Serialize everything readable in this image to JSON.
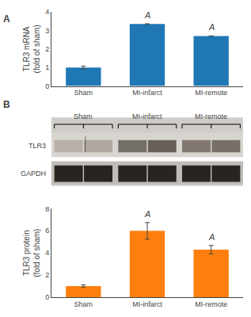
{
  "chart_data": [
    {
      "type": "bar",
      "title": "A",
      "categories": [
        "Sham",
        "MI-infarct",
        "MI-remote"
      ],
      "values": [
        1.0,
        3.35,
        2.7
      ],
      "errors": [
        0.08,
        0.0,
        0.0
      ],
      "annotations": [
        {
          "category": "MI-infarct",
          "text": "A"
        },
        {
          "category": "MI-remote",
          "text": "A"
        }
      ],
      "ylabel": "TLR3 mRNA\n(fold of sham)",
      "ylim": [
        0,
        4
      ],
      "yticks": [
        0,
        1,
        2,
        3,
        4
      ],
      "grid": false
    },
    {
      "type": "blot",
      "title": "B",
      "categories": [
        "Sham",
        "MI-infarct",
        "MI-remote"
      ],
      "annotations": [
        "TLR3",
        "GAPDH"
      ]
    },
    {
      "type": "bar",
      "categories": [
        "Sham",
        "MI-infarct",
        "MI-remote"
      ],
      "values": [
        1.0,
        6.0,
        4.3
      ],
      "errors": [
        0.12,
        0.75,
        0.38
      ],
      "annotations": [
        {
          "category": "MI-infarct",
          "text": "A"
        },
        {
          "category": "MI-remote",
          "text": "A"
        }
      ],
      "ylabel": "TLR3 protein\n(fold of sham)",
      "ylim": [
        0,
        8
      ],
      "yticks": [
        0,
        2,
        4,
        6,
        8
      ],
      "grid": false
    }
  ]
}
